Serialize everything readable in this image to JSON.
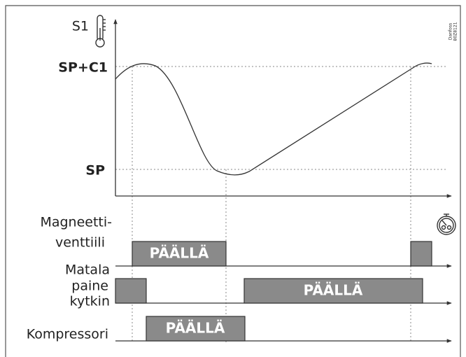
{
  "y_axis_label": "S1",
  "levels": [
    "SP+C1",
    "SP"
  ],
  "rows": [
    {
      "label": [
        "Magneetti-",
        "venttiili"
      ],
      "bar_label": "PÄÄLLÄ"
    },
    {
      "label": [
        "Matala",
        "paine",
        "kytkin"
      ],
      "bar_label": "PÄÄLLÄ"
    },
    {
      "label": [
        "Kompressori"
      ],
      "bar_label": "PÄÄLLÄ"
    }
  ],
  "watermark": {
    "brand": "Danfoss",
    "code": "80Z8121"
  }
}
